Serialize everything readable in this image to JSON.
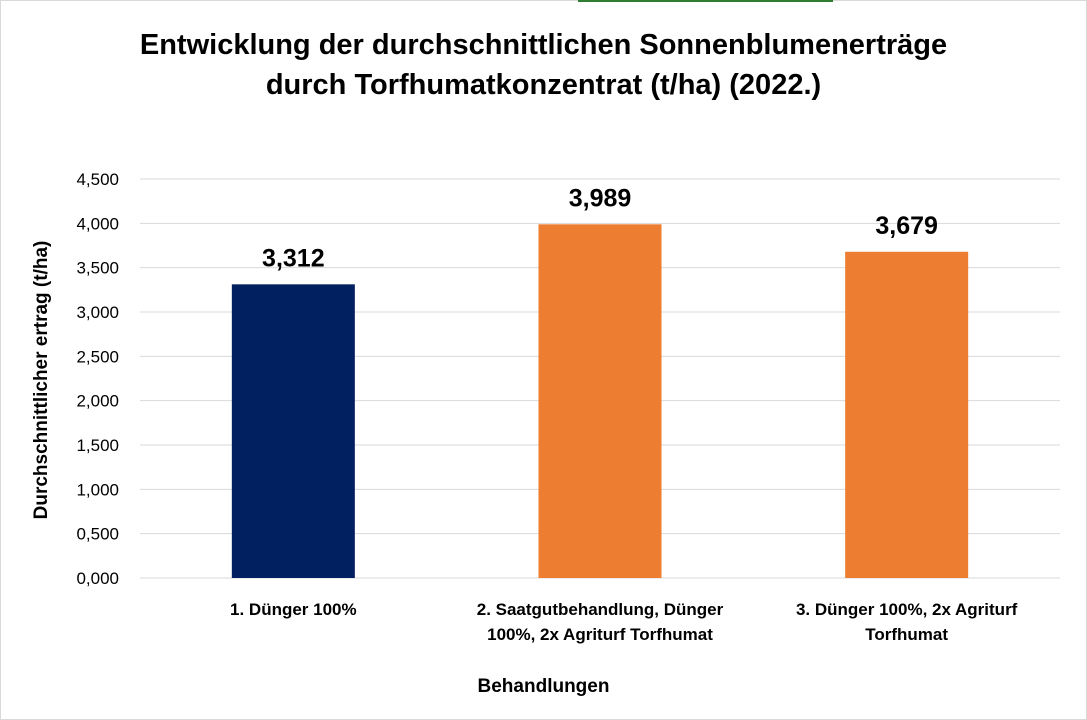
{
  "chart_data": {
    "type": "bar",
    "title_line1": "Entwicklung der durchschnittlichen Sonnenblumenerträge",
    "title_line2": "durch Torfhumatkonzentrat (t/ha) (2022.)",
    "xlabel": "Behandlungen",
    "ylabel": "Durchschnittlicher ertrag (t/ha)",
    "categories": [
      "1. Dünger 100%",
      "2. Saatgutbehandlung,  Dünger 100%, 2x Agriturf Torfhumat",
      "3. Dünger 100%, 2x Agriturf Torfhumat"
    ],
    "category_lines": [
      [
        "1. Dünger 100%"
      ],
      [
        "2. Saatgutbehandlung,  Dünger",
        "100%, 2x Agriturf Torfhumat"
      ],
      [
        "3. Dünger 100%, 2x Agriturf",
        "Torfhumat"
      ]
    ],
    "values": [
      3.312,
      3.989,
      3.679
    ],
    "value_labels": [
      "3,312",
      "3,989",
      "3,679"
    ],
    "bar_colors": [
      "#002060",
      "#ED7D31",
      "#ED7D31"
    ],
    "ylim": [
      0,
      4.5
    ],
    "yticks": [
      "0,000",
      "0,500",
      "1,000",
      "1,500",
      "2,000",
      "2,500",
      "3,000",
      "3,500",
      "4,000",
      "4,500"
    ],
    "grid": true,
    "legend": "none"
  }
}
